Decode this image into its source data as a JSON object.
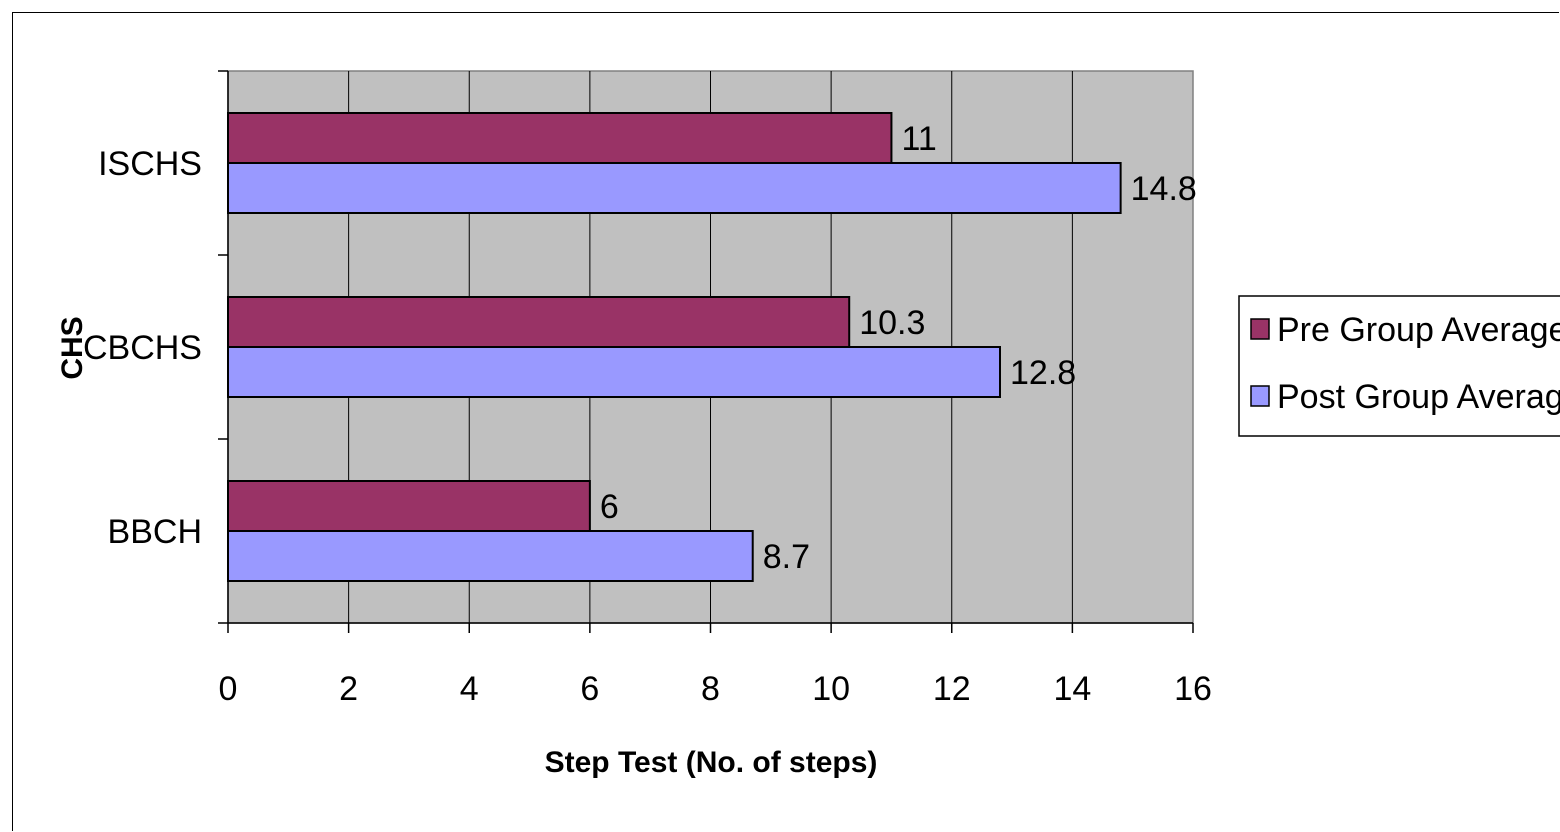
{
  "chart_data": {
    "type": "bar",
    "orientation": "horizontal",
    "categories": [
      "ISCHS",
      "CBCHS",
      "BBCH"
    ],
    "series": [
      {
        "name": "Pre Group Average",
        "values": [
          11,
          10.3,
          6
        ],
        "color": "#993366"
      },
      {
        "name": "Post Group Average",
        "values": [
          14.8,
          12.8,
          8.7
        ],
        "color": "#9999FF"
      }
    ],
    "data_labels": {
      "Pre Group Average": [
        "11",
        "10.3",
        "6"
      ],
      "Post Group Average": [
        "14.8",
        "12.8",
        "8.7"
      ]
    },
    "xlabel": "Step Test (No. of steps)",
    "ylabel": "CHS",
    "xlim": [
      0,
      16
    ],
    "x_ticks": [
      "0",
      "2",
      "4",
      "6",
      "8",
      "10",
      "12",
      "14",
      "16"
    ],
    "grid": true,
    "plot_background": "#C0C0C0",
    "legend_position": "right"
  }
}
